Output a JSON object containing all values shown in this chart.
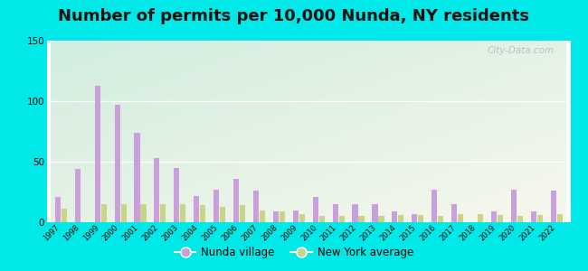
{
  "title": "Number of permits per 10,000 Nunda, NY residents",
  "years": [
    1997,
    1998,
    1999,
    2000,
    2001,
    2002,
    2003,
    2004,
    2005,
    2006,
    2007,
    2008,
    2009,
    2010,
    2011,
    2012,
    2013,
    2014,
    2015,
    2016,
    2017,
    2018,
    2019,
    2020,
    2021,
    2022
  ],
  "nunda": [
    21,
    44,
    113,
    97,
    74,
    53,
    45,
    22,
    27,
    36,
    26,
    9,
    10,
    21,
    15,
    15,
    15,
    9,
    7,
    27,
    15,
    0,
    9,
    27,
    9,
    26
  ],
  "ny_avg": [
    11,
    0,
    15,
    15,
    15,
    15,
    15,
    14,
    13,
    14,
    10,
    9,
    7,
    5,
    5,
    5,
    5,
    6,
    6,
    5,
    7,
    7,
    6,
    5,
    6,
    7
  ],
  "nunda_color": "#c9a0dc",
  "ny_color": "#c8d48a",
  "bg_outer": "#00e8e8",
  "ylim": [
    0,
    150
  ],
  "yticks": [
    0,
    50,
    100,
    150
  ],
  "title_fontsize": 13,
  "legend_label_nunda": "Nunda village",
  "legend_label_ny": "New York average",
  "watermark": "City-Data.com"
}
